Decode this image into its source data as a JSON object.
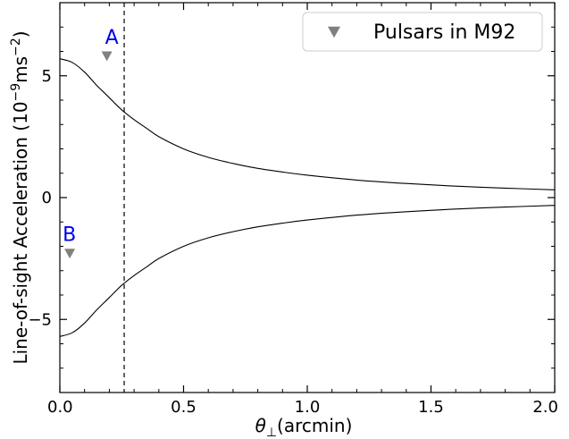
{
  "chart_data": {
    "type": "line",
    "x_ticks": [
      {
        "value": 0.0,
        "label": "0.0"
      },
      {
        "value": 0.5,
        "label": "0.5"
      },
      {
        "value": 1.0,
        "label": "1.0"
      },
      {
        "value": 1.5,
        "label": "1.5"
      },
      {
        "value": 2.0,
        "label": "2.0"
      }
    ],
    "y_ticks": [
      {
        "value": 5,
        "label": "5"
      },
      {
        "value": 0,
        "label": "0"
      },
      {
        "value": -5,
        "label": "−5"
      }
    ],
    "xlim": [
      0,
      2.0
    ],
    "ylim": [
      -8,
      8
    ],
    "x_minor_step": 0.1,
    "y_minor_step": 1,
    "xlabel_symbol": "θ",
    "xlabel_subscript": "⊥",
    "xlabel_unit": "(arcmin)",
    "ylabel_main": "Line-of-sight Acceleration (10",
    "ylabel_exp1": "−9",
    "ylabel_mid": "ms",
    "ylabel_exp2": "−2",
    "ylabel_end": ")",
    "grid": false,
    "legend_position": "top-right",
    "curves": {
      "upper": {
        "x": [
          0,
          0.05,
          0.1,
          0.15,
          0.2,
          0.25,
          0.3,
          0.35,
          0.4,
          0.5,
          0.6,
          0.7,
          0.8,
          0.9,
          1.0,
          1.2,
          1.4,
          1.6,
          1.8,
          2.0
        ],
        "y": [
          5.7,
          5.55,
          5.15,
          4.6,
          4.1,
          3.6,
          3.2,
          2.85,
          2.5,
          2.0,
          1.65,
          1.4,
          1.2,
          1.05,
          0.92,
          0.72,
          0.58,
          0.47,
          0.39,
          0.32
        ]
      },
      "lower": {
        "x": [
          0,
          0.05,
          0.1,
          0.15,
          0.2,
          0.25,
          0.3,
          0.35,
          0.4,
          0.5,
          0.6,
          0.7,
          0.8,
          0.9,
          1.0,
          1.2,
          1.4,
          1.6,
          1.8,
          2.0
        ],
        "y": [
          -5.7,
          -5.55,
          -5.15,
          -4.6,
          -4.1,
          -3.6,
          -3.2,
          -2.85,
          -2.5,
          -2.0,
          -1.65,
          -1.4,
          -1.2,
          -1.05,
          -0.92,
          -0.72,
          -0.58,
          -0.47,
          -0.39,
          -0.32
        ]
      }
    },
    "vline_x": 0.26,
    "series": [
      {
        "name": "Pulsars in M92",
        "marker": "down-triangle",
        "color": "#808080",
        "points": [
          {
            "label": "A",
            "x": 0.19,
            "y": 5.8
          },
          {
            "label": "B",
            "x": 0.04,
            "y": -2.3
          }
        ]
      }
    ],
    "label_color": "#0000ee"
  }
}
